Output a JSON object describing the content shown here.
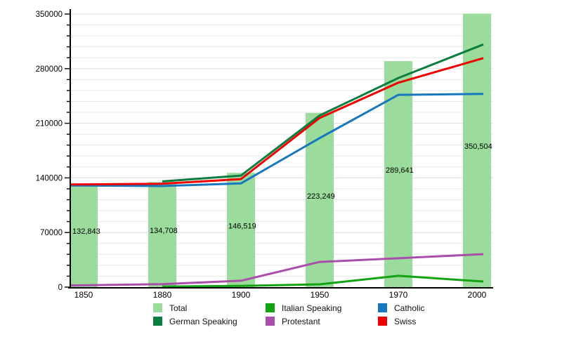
{
  "chart_data": {
    "type": "bar",
    "title": "",
    "xlabel": "",
    "ylabel": "",
    "categories": [
      "1850",
      "1880",
      "1900",
      "1950",
      "1970",
      "2000"
    ],
    "y_axis": {
      "min": 0,
      "max": 350000,
      "major_step": 70000,
      "minor_step": 14000,
      "tick_labels": [
        "0",
        "70000",
        "140000",
        "210000",
        "280000",
        "350000"
      ]
    },
    "grid": true,
    "legend_position": "bottom",
    "bars": {
      "name": "Total",
      "color": "#9bdb9b",
      "values": [
        132843,
        134708,
        146519,
        223249,
        289641,
        350504
      ],
      "labels": [
        "132,843",
        "134,708",
        "146,519",
        "223,249",
        "289,641",
        "350,504"
      ]
    },
    "series": [
      {
        "name": "Italian Speaking",
        "color": "#12a312",
        "values": [
          null,
          700,
          1500,
          3600,
          14500,
          7200
        ]
      },
      {
        "name": "Protestant",
        "color": "#a94fab",
        "values": [
          2200,
          3800,
          8200,
          32300,
          37000,
          42300
        ]
      },
      {
        "name": "German Speaking",
        "color": "#0b7d3e",
        "values": [
          null,
          135500,
          143000,
          220000,
          268000,
          311000
        ]
      },
      {
        "name": "Catholic",
        "color": "#1878be",
        "values": [
          130300,
          129600,
          133000,
          191000,
          246400,
          247600
        ]
      },
      {
        "name": "Swiss",
        "color": "#f00000",
        "values": [
          131500,
          132500,
          138500,
          216800,
          262000,
          293500
        ]
      }
    ]
  },
  "legend": {
    "entries": [
      {
        "label": "Total",
        "color": "#9bdb9b"
      },
      {
        "label": "Italian Speaking",
        "color": "#12a312"
      },
      {
        "label": "Catholic",
        "color": "#1878be"
      },
      {
        "label": "German Speaking",
        "color": "#0b7d3e"
      },
      {
        "label": "Protestant",
        "color": "#a94fab"
      },
      {
        "label": "Swiss",
        "color": "#f00000"
      }
    ]
  },
  "colors": {
    "axis": "#000000",
    "grid_minor": "#e9e9e9",
    "grid_major": "#dcdcdc",
    "bar_label": "#000000"
  }
}
